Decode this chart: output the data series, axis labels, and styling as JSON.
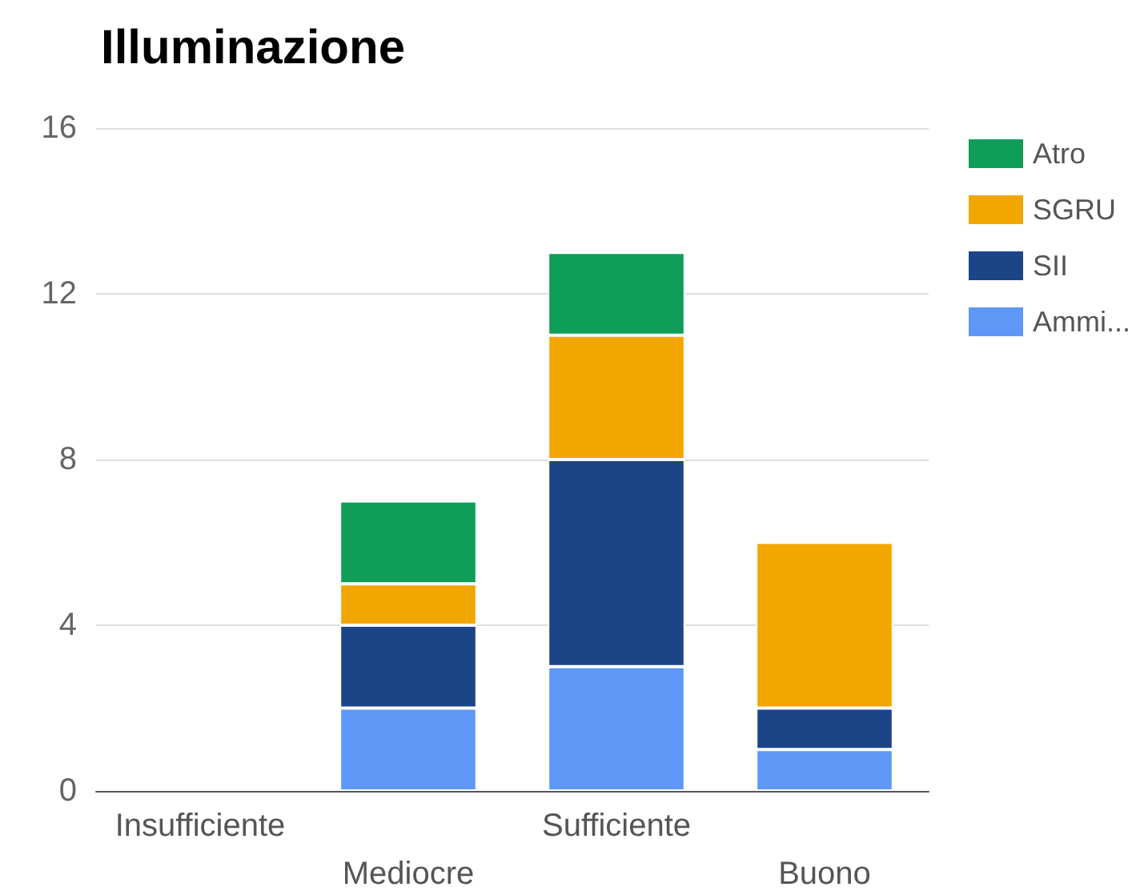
{
  "chart_data": {
    "type": "bar",
    "title": "Illuminazione",
    "categories": [
      "Insufficiente",
      "Mediocre",
      "Sufficiente",
      "Buono"
    ],
    "series": [
      {
        "name": "Ammi...",
        "color": "#5e97f6",
        "values": [
          0,
          2,
          3,
          1
        ]
      },
      {
        "name": "SII",
        "color": "#1c4587",
        "values": [
          0,
          2,
          5,
          1
        ]
      },
      {
        "name": "SGRU",
        "color": "#f2a600",
        "values": [
          0,
          1,
          3,
          4
        ]
      },
      {
        "name": "Atro",
        "color": "#0f9d58",
        "values": [
          0,
          2,
          2,
          0
        ]
      }
    ],
    "stacked": true,
    "ylim": [
      0,
      16
    ],
    "yticks": [
      0,
      4,
      8,
      12,
      16
    ],
    "grid": "y",
    "legend": "top right"
  }
}
